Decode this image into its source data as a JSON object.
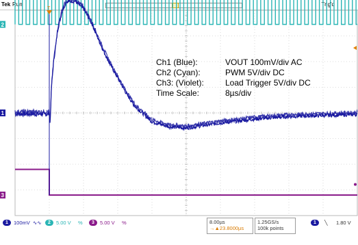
{
  "header": {
    "brand": "Tek",
    "run_state": "Run",
    "trigger_status": "Trig'd"
  },
  "chart_data": {
    "type": "line",
    "title": "",
    "xlabel": "",
    "ylabel": "",
    "grid": true,
    "time_per_div_us": 8,
    "divisions_x": 10,
    "divisions_y": 8,
    "x_unit": "us",
    "xlim": [
      -8,
      72
    ],
    "trigger_time_us": 0,
    "series": [
      {
        "name": "VOUT",
        "channel": 1,
        "color": "#1a1aa0",
        "unit": "mV",
        "volts_per_div": 0.1,
        "ground_div": 0,
        "x": [
          -8,
          -4,
          -1,
          0,
          0.2,
          0.5,
          1,
          2,
          3,
          4,
          6,
          8,
          10,
          12,
          14,
          16,
          18,
          20,
          22,
          24,
          28,
          32,
          36,
          40,
          44,
          48,
          52,
          56,
          60,
          64,
          68,
          72
        ],
        "values": [
          0,
          0,
          0,
          0,
          -40,
          100,
          200,
          330,
          400,
          438,
          440,
          410,
          350,
          270,
          200,
          140,
          80,
          30,
          0,
          -30,
          -50,
          -55,
          -45,
          -35,
          -28,
          -20,
          -15,
          -10,
          -8,
          -6,
          -4,
          -2
        ]
      },
      {
        "name": "PWM",
        "channel": 2,
        "color": "#2ab5b5",
        "unit": "V",
        "volts_per_div": 5,
        "ground_div": 3.45,
        "period_us": 1.714,
        "high_v": 5,
        "low_v": 0
      },
      {
        "name": "Load Trigger",
        "channel": 3,
        "color": "#8a1a8a",
        "unit": "V",
        "volts_per_div": 5,
        "ground_div": -3.2,
        "x": [
          -8,
          0,
          0,
          72
        ],
        "values": [
          5,
          5,
          0,
          0
        ]
      }
    ],
    "annotation": {
      "lines": [
        {
          "label": "Ch1 (Blue):",
          "value": "VOUT 100mV/div AC"
        },
        {
          "label": "Ch2 (Cyan):",
          "value": "PWM 5V/div DC"
        },
        {
          "label": "Ch3: (Violet):",
          "value": "Load Trigger 5V/div DC"
        },
        {
          "label": "Time Scale:",
          "value": "8µs/div"
        }
      ]
    }
  },
  "readout": {
    "ch1": {
      "num": "1",
      "scale": "100mV",
      "coupling": "∿∿",
      "color": "#1a1aa0"
    },
    "ch2": {
      "num": "2",
      "scale": "5.00 V",
      "coupling": "%",
      "color": "#2ab5b5"
    },
    "ch3": {
      "num": "3",
      "scale": "5.00 V",
      "coupling": "%",
      "color": "#8a1a8a"
    },
    "timebase": "8.00µs",
    "position": "→▲23.8000µs",
    "sample_rate": "1.25GS/s",
    "record_length": "100k points",
    "trigger_source": "1",
    "trigger_slope": "╲",
    "trigger_level": "1.80 V"
  },
  "markers": {
    "ch1": "1",
    "ch2": "2",
    "ch3": "3",
    "trigger": "T"
  }
}
